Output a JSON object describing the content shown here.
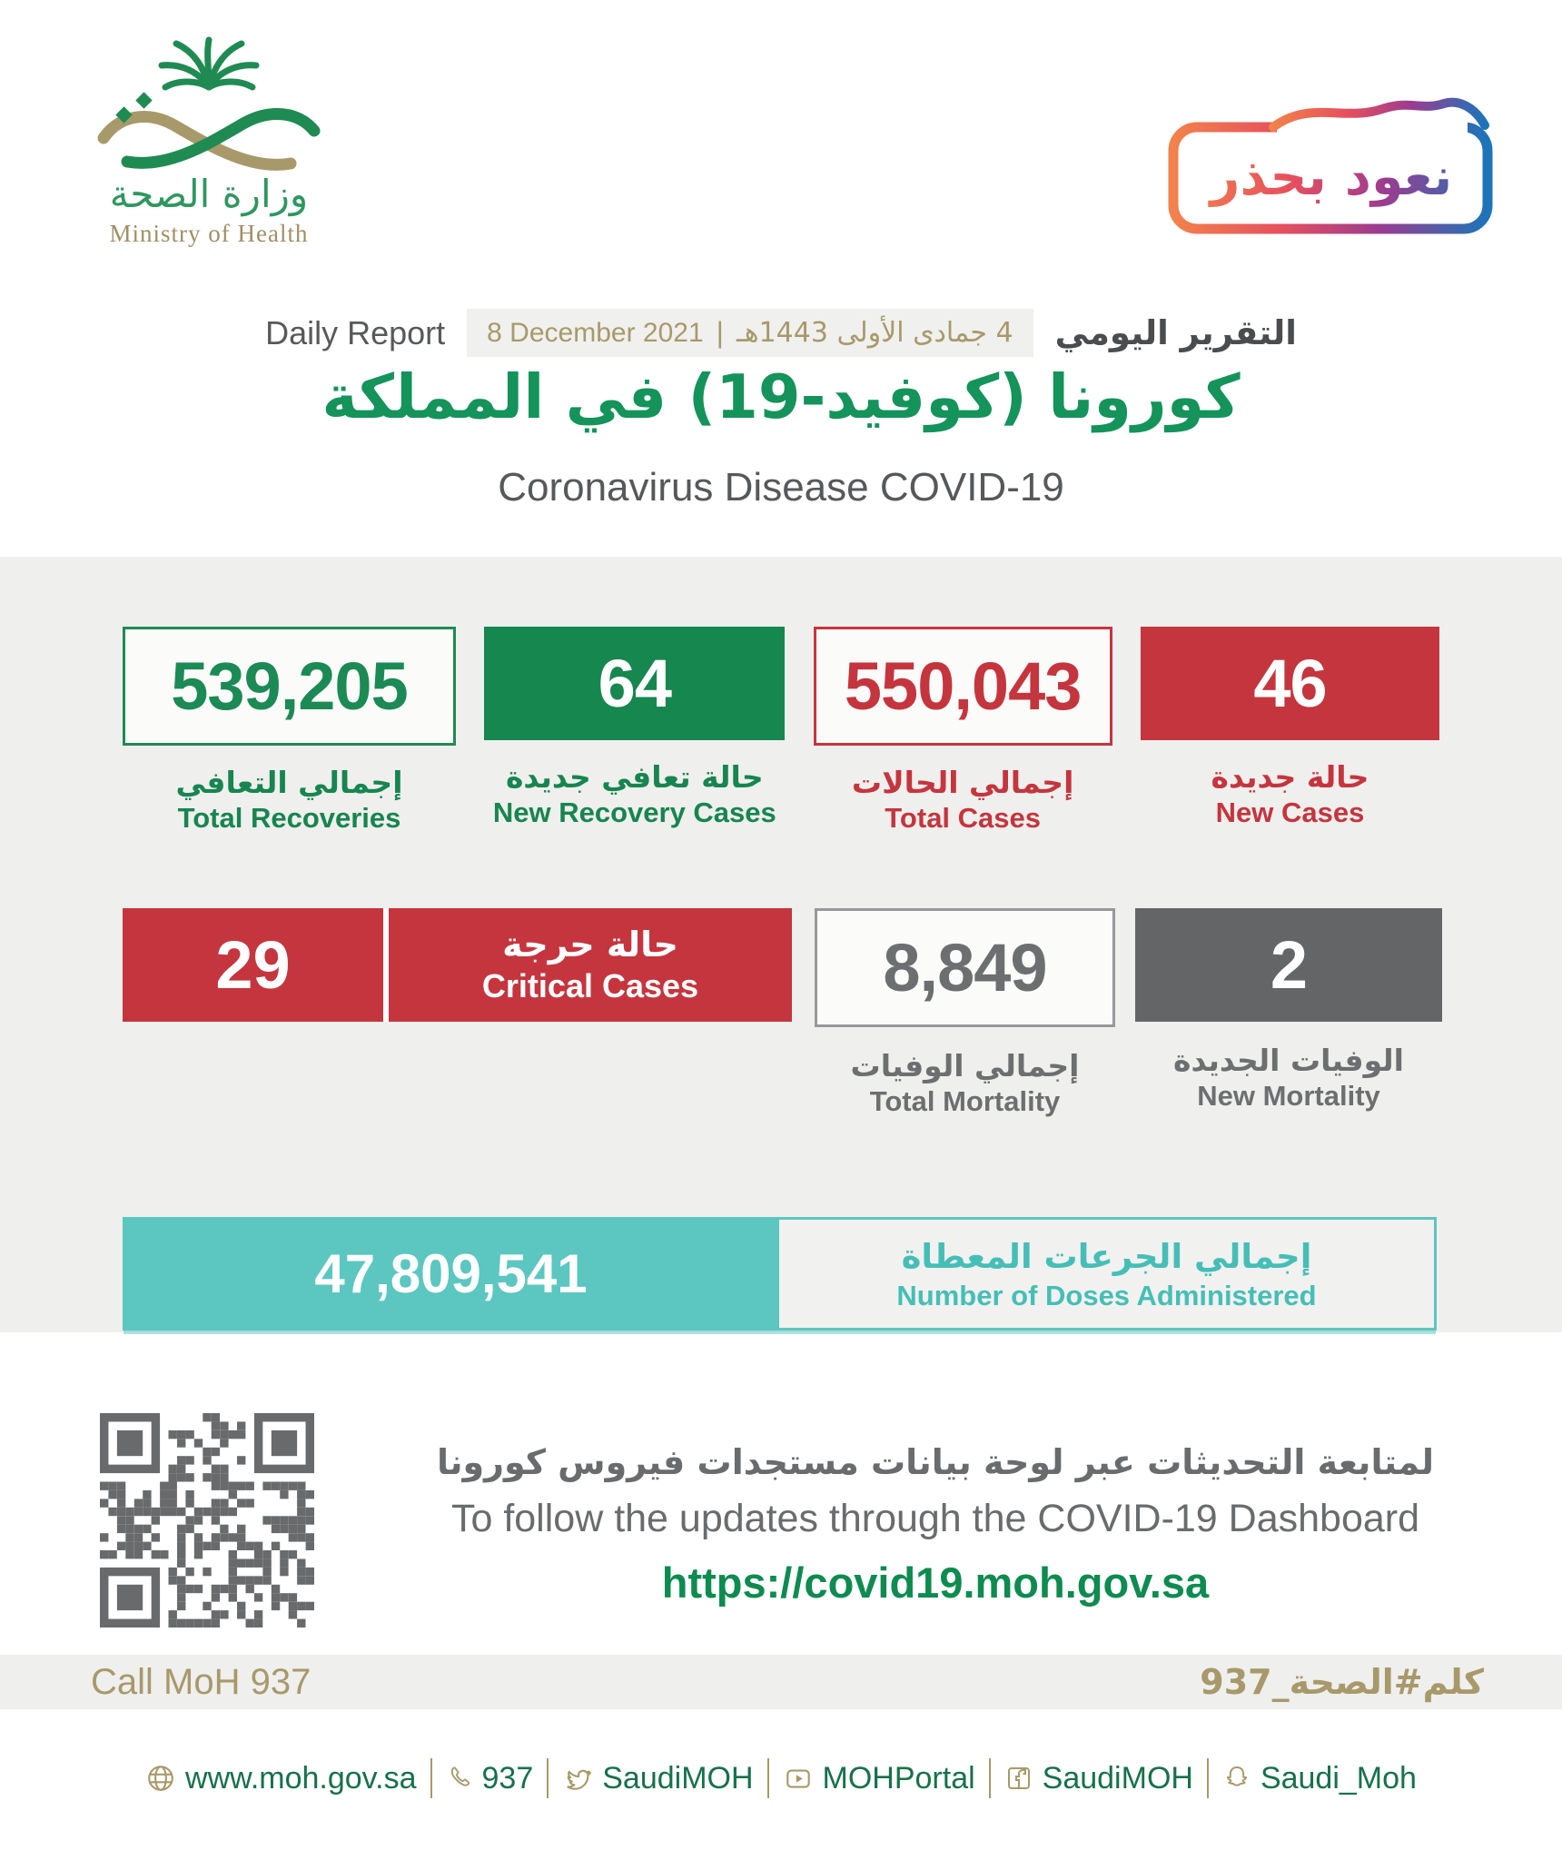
{
  "colors": {
    "green": "#16874E",
    "green_bright": "#14935A",
    "red": "#C5353E",
    "gray": "#6D6E70",
    "dark_gray": "#646567",
    "teal": "#5CC6C0",
    "gold": "#A8996B",
    "footer_green": "#17714A",
    "band_gray": "#EFEFED"
  },
  "header": {
    "logo": {
      "title_ar": "وزارة الصحة",
      "title_en": "Ministry of Health"
    },
    "badge": {
      "text": "نعود بحذر"
    },
    "report": {
      "label_en": "Daily Report",
      "label_ar": "التقرير اليومي",
      "date_gregorian": "8 December 2021",
      "separator": "|",
      "date_hijri": "4 جمادى الأولى 1443هـ"
    },
    "title_ar": "كورونا (كوفيد-19) في المملكة",
    "title_en": "Coronavirus Disease COVID-19"
  },
  "stats": {
    "row1": [
      {
        "value": "539,205",
        "label_ar": "إجمالي التعافي",
        "label_en": "Total Recoveries"
      },
      {
        "value": "64",
        "label_ar": "حالة تعافي جديدة",
        "label_en": "New Recovery Cases"
      },
      {
        "value": "550,043",
        "label_ar": "إجمالي الحالات",
        "label_en": "Total Cases"
      },
      {
        "value": "46",
        "label_ar": "حالة جديدة",
        "label_en": "New Cases"
      }
    ],
    "critical": {
      "value": "29",
      "label_ar": "حالة حرجة",
      "label_en": "Critical Cases"
    },
    "total_mortality": {
      "value": "8,849",
      "label_ar": "إجمالي الوفيات",
      "label_en": "Total Mortality"
    },
    "new_mortality": {
      "value": "2",
      "label_ar": "الوفيات الجديدة",
      "label_en": "New Mortality"
    },
    "doses": {
      "value": "47,809,541",
      "label_ar": "إجمالي الجرعات المعطاة",
      "label_en": "Number of Doses Administered"
    }
  },
  "dashboard": {
    "line_ar": "لمتابعة التحديثات عبر لوحة بيانات مستجدات فيروس كورونا",
    "line_en": "To follow the updates through the COVID-19 Dashboard",
    "url": "https://covid19.moh.gov.sa"
  },
  "contact": {
    "call_en": "Call MoH 937",
    "call_ar": "كلم#الصحة_937"
  },
  "footer": {
    "items": [
      {
        "icon": "globe-icon",
        "label": "www.moh.gov.sa"
      },
      {
        "icon": "phone-icon",
        "label": "937"
      },
      {
        "icon": "twitter-icon",
        "label": "SaudiMOH"
      },
      {
        "icon": "youtube-icon",
        "label": "MOHPortal"
      },
      {
        "icon": "facebook-icon",
        "label": "SaudiMOH"
      },
      {
        "icon": "snapchat-icon",
        "label": "Saudi_Moh"
      }
    ]
  }
}
